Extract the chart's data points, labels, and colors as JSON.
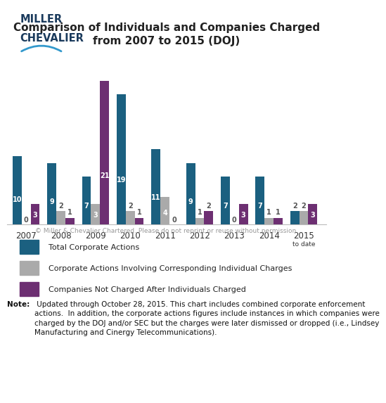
{
  "title": "Comparison of Individuals and Companies Charged\nfrom 2007 to 2015 (DOJ)",
  "categories": [
    "2007",
    "2008",
    "2009",
    "2010",
    "2011",
    "2012",
    "2013",
    "2014",
    "2015"
  ],
  "total_actions": [
    10,
    9,
    7,
    19,
    11,
    9,
    7,
    7,
    2
  ],
  "corp_actions": [
    0,
    2,
    3,
    2,
    4,
    1,
    0,
    1,
    2
  ],
  "not_charged": [
    3,
    1,
    21,
    1,
    0,
    2,
    3,
    1,
    3
  ],
  "color_total": "#1b6080",
  "color_corp": "#aaaaaa",
  "color_not_charged": "#6d2f72",
  "bar_width": 0.26,
  "ylim": [
    0,
    25
  ],
  "copyright": "© Miller & Chevalier Chartered. Please do not reprint or reuse without permission.",
  "legend_labels": [
    "Total Corporate Actions",
    "Corporate Actions Involving Corresponding Individual Charges",
    "Companies Not Charged After Individuals Charged"
  ],
  "note_bold": "Note:",
  "note_regular": " Updated through October 28, 2015. This chart includes combined corporate enforcement\nactions.  In addition, the corporate actions figures include instances in which companies were\ncharged by the DOJ and/or SEC but the charges were later dismissed or dropped (i.e., Lindsey\nManufacturing and Cinergy Telecommunications).",
  "logo_line1": "MILLER",
  "logo_line2": "CHEVALIER",
  "logo_color": "#1a3a5c",
  "swash_color": "#3399cc"
}
